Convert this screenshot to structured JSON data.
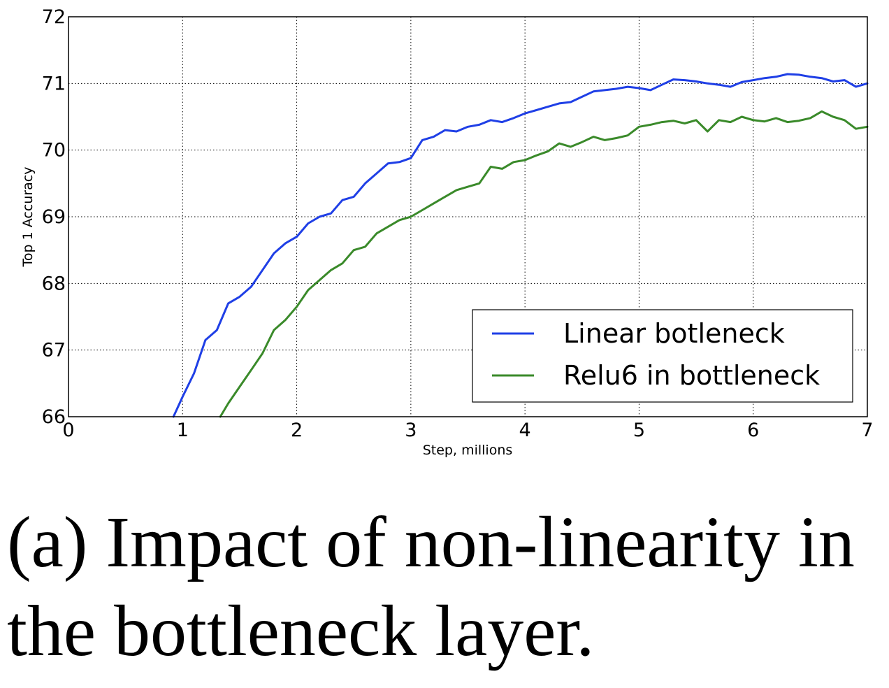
{
  "caption": "(a) Impact of non-linearity in the bottleneck layer.",
  "chart_data": {
    "type": "line",
    "xlabel": "Step, millions",
    "ylabel": "Top 1 Accuracy",
    "xlim": [
      0,
      7
    ],
    "ylim": [
      66,
      72
    ],
    "xticks": [
      "0",
      "1",
      "2",
      "3",
      "4",
      "5",
      "6",
      "7"
    ],
    "yticks": [
      "66",
      "67",
      "68",
      "69",
      "70",
      "71",
      "72"
    ],
    "grid": true,
    "legend_position": "lower-right",
    "series": [
      {
        "name": "Linear botleneck",
        "color": "#1f3fe6",
        "points": [
          [
            0.92,
            66.0
          ],
          [
            1.0,
            66.3
          ],
          [
            1.1,
            66.65
          ],
          [
            1.2,
            67.15
          ],
          [
            1.3,
            67.3
          ],
          [
            1.4,
            67.7
          ],
          [
            1.5,
            67.8
          ],
          [
            1.6,
            67.95
          ],
          [
            1.7,
            68.2
          ],
          [
            1.8,
            68.45
          ],
          [
            1.9,
            68.6
          ],
          [
            2.0,
            68.7
          ],
          [
            2.1,
            68.9
          ],
          [
            2.2,
            69.0
          ],
          [
            2.3,
            69.05
          ],
          [
            2.4,
            69.25
          ],
          [
            2.5,
            69.3
          ],
          [
            2.6,
            69.5
          ],
          [
            2.7,
            69.65
          ],
          [
            2.8,
            69.8
          ],
          [
            2.9,
            69.82
          ],
          [
            3.0,
            69.88
          ],
          [
            3.1,
            70.15
          ],
          [
            3.2,
            70.2
          ],
          [
            3.3,
            70.3
          ],
          [
            3.4,
            70.28
          ],
          [
            3.5,
            70.35
          ],
          [
            3.6,
            70.38
          ],
          [
            3.7,
            70.45
          ],
          [
            3.8,
            70.42
          ],
          [
            3.9,
            70.48
          ],
          [
            4.0,
            70.55
          ],
          [
            4.1,
            70.6
          ],
          [
            4.2,
            70.65
          ],
          [
            4.3,
            70.7
          ],
          [
            4.4,
            70.72
          ],
          [
            4.5,
            70.8
          ],
          [
            4.6,
            70.88
          ],
          [
            4.7,
            70.9
          ],
          [
            4.8,
            70.92
          ],
          [
            4.9,
            70.95
          ],
          [
            5.0,
            70.93
          ],
          [
            5.1,
            70.9
          ],
          [
            5.2,
            70.98
          ],
          [
            5.3,
            71.06
          ],
          [
            5.4,
            71.05
          ],
          [
            5.5,
            71.03
          ],
          [
            5.6,
            71.0
          ],
          [
            5.7,
            70.98
          ],
          [
            5.8,
            70.95
          ],
          [
            5.9,
            71.02
          ],
          [
            6.0,
            71.05
          ],
          [
            6.1,
            71.08
          ],
          [
            6.2,
            71.1
          ],
          [
            6.3,
            71.14
          ],
          [
            6.4,
            71.13
          ],
          [
            6.5,
            71.1
          ],
          [
            6.6,
            71.08
          ],
          [
            6.7,
            71.03
          ],
          [
            6.8,
            71.05
          ],
          [
            6.9,
            70.95
          ],
          [
            7.0,
            71.0
          ]
        ]
      },
      {
        "name": "Relu6 in bottleneck",
        "color": "#3a8a2a",
        "points": [
          [
            1.33,
            66.0
          ],
          [
            1.4,
            66.2
          ],
          [
            1.5,
            66.45
          ],
          [
            1.6,
            66.7
          ],
          [
            1.7,
            66.95
          ],
          [
            1.8,
            67.3
          ],
          [
            1.9,
            67.45
          ],
          [
            2.0,
            67.65
          ],
          [
            2.1,
            67.9
          ],
          [
            2.2,
            68.05
          ],
          [
            2.3,
            68.2
          ],
          [
            2.4,
            68.3
          ],
          [
            2.5,
            68.5
          ],
          [
            2.6,
            68.55
          ],
          [
            2.7,
            68.75
          ],
          [
            2.8,
            68.85
          ],
          [
            2.9,
            68.95
          ],
          [
            3.0,
            69.0
          ],
          [
            3.1,
            69.1
          ],
          [
            3.2,
            69.2
          ],
          [
            3.3,
            69.3
          ],
          [
            3.4,
            69.4
          ],
          [
            3.5,
            69.45
          ],
          [
            3.6,
            69.5
          ],
          [
            3.7,
            69.75
          ],
          [
            3.8,
            69.72
          ],
          [
            3.9,
            69.82
          ],
          [
            4.0,
            69.85
          ],
          [
            4.1,
            69.92
          ],
          [
            4.2,
            69.98
          ],
          [
            4.3,
            70.1
          ],
          [
            4.4,
            70.05
          ],
          [
            4.5,
            70.12
          ],
          [
            4.6,
            70.2
          ],
          [
            4.7,
            70.15
          ],
          [
            4.8,
            70.18
          ],
          [
            4.9,
            70.22
          ],
          [
            5.0,
            70.35
          ],
          [
            5.1,
            70.38
          ],
          [
            5.2,
            70.42
          ],
          [
            5.3,
            70.44
          ],
          [
            5.4,
            70.4
          ],
          [
            5.5,
            70.45
          ],
          [
            5.6,
            70.28
          ],
          [
            5.7,
            70.45
          ],
          [
            5.8,
            70.42
          ],
          [
            5.9,
            70.5
          ],
          [
            6.0,
            70.45
          ],
          [
            6.1,
            70.43
          ],
          [
            6.2,
            70.48
          ],
          [
            6.3,
            70.42
          ],
          [
            6.4,
            70.44
          ],
          [
            6.5,
            70.48
          ],
          [
            6.6,
            70.58
          ],
          [
            6.7,
            70.5
          ],
          [
            6.8,
            70.45
          ],
          [
            6.9,
            70.32
          ],
          [
            7.0,
            70.35
          ]
        ]
      }
    ]
  }
}
